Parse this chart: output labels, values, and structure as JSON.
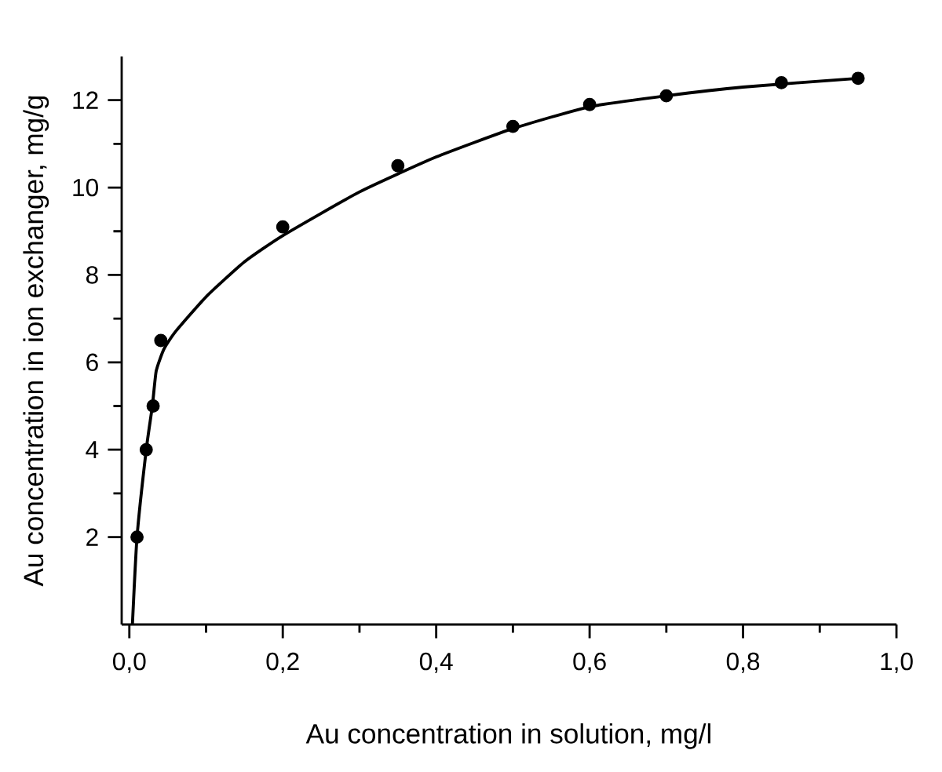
{
  "chart_data": {
    "type": "scatter",
    "xlabel": "Au concentration in solution, mg/l",
    "ylabel": "Au concentration in ion exchanger, mg/g",
    "xlim": [
      -0.01,
      1.0
    ],
    "ylim": [
      0,
      13
    ],
    "xticks": [
      {
        "value": 0,
        "label": "0,0"
      },
      {
        "value": 0.2,
        "label": "0,2"
      },
      {
        "value": 0.4,
        "label": "0,4"
      },
      {
        "value": 0.6,
        "label": "0,6"
      },
      {
        "value": 0.8,
        "label": "0,8"
      },
      {
        "value": 1.0,
        "label": "1,0"
      }
    ],
    "yticks": [
      2,
      4,
      6,
      8,
      10,
      12
    ],
    "grid": false,
    "series": [
      {
        "marker": "circle",
        "color": "#000000",
        "x": [
          0.01,
          0.022,
          0.031,
          0.041,
          0.2,
          0.35,
          0.5,
          0.6,
          0.7,
          0.85,
          0.95
        ],
        "values": [
          2,
          4,
          5,
          6.5,
          9.1,
          10.5,
          11.4,
          11.9,
          12.1,
          12.4,
          12.5
        ]
      },
      {
        "type": "line",
        "marker": "none",
        "line_style": "solid",
        "color": "#000000",
        "x": [
          0.004,
          0.01,
          0.022,
          0.03,
          0.035,
          0.045,
          0.06,
          0.1,
          0.15,
          0.2,
          0.3,
          0.4,
          0.5,
          0.6,
          0.7,
          0.8,
          0.95
        ],
        "values": [
          0,
          2,
          4,
          5,
          5.8,
          6.3,
          6.7,
          7.5,
          8.3,
          8.9,
          9.9,
          10.7,
          11.35,
          11.85,
          12.1,
          12.3,
          12.5
        ]
      }
    ]
  }
}
